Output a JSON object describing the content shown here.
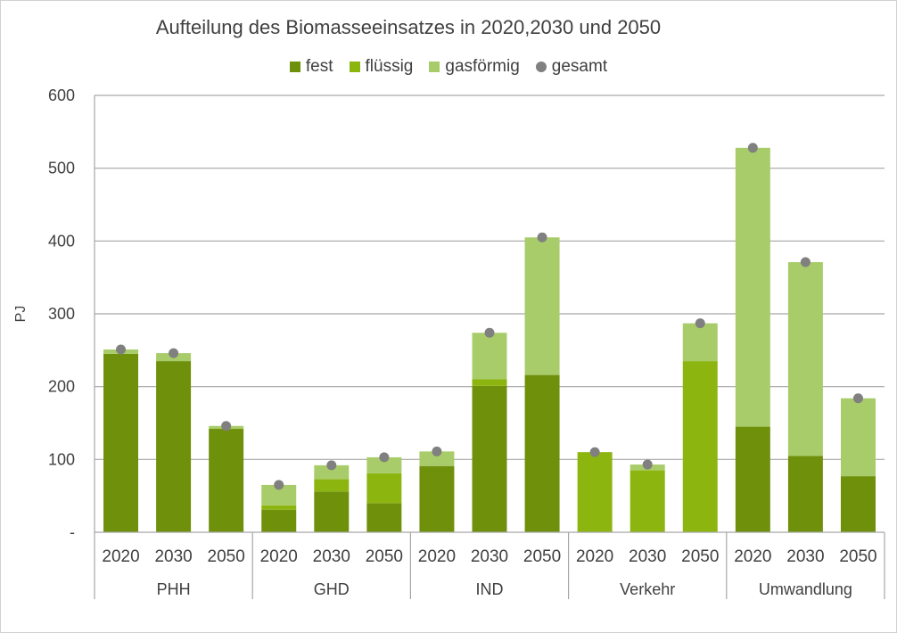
{
  "chart_data": {
    "type": "bar",
    "stacked": true,
    "title": "Aufteilung des Biomasseeinsatzes in 2020,2030 und 2050",
    "ylabel": "PJ",
    "xlabel": "",
    "ylim": [
      0,
      600
    ],
    "yticks": [
      0,
      100,
      200,
      300,
      400,
      500,
      600
    ],
    "ytick_labels": [
      "-",
      "100",
      "200",
      "300",
      "400",
      "500",
      "600"
    ],
    "grid": true,
    "legend_position": "top-center",
    "groups": [
      {
        "label": "PHH",
        "years": [
          "2020",
          "2030",
          "2050"
        ]
      },
      {
        "label": "GHD",
        "years": [
          "2020",
          "2030",
          "2050"
        ]
      },
      {
        "label": "IND",
        "years": [
          "2020",
          "2030",
          "2050"
        ]
      },
      {
        "label": "Verkehr",
        "years": [
          "2020",
          "2030",
          "2050"
        ]
      },
      {
        "label": "Umwandlung",
        "years": [
          "2020",
          "2030",
          "2050"
        ]
      }
    ],
    "series": [
      {
        "name": "fest",
        "color": "#6f900b",
        "values": [
          245,
          235,
          142,
          31,
          56,
          40,
          91,
          201,
          216,
          0,
          0,
          0,
          145,
          105,
          77
        ]
      },
      {
        "name": "flüssig",
        "color": "#8db510",
        "values": [
          0,
          0,
          0,
          6,
          17,
          41,
          0,
          9,
          0,
          110,
          85,
          235,
          0,
          0,
          0
        ]
      },
      {
        "name": "gasförmig",
        "color": "#a9cc6a",
        "values": [
          6,
          11,
          4,
          28,
          19,
          22,
          20,
          64,
          189,
          0,
          8,
          52,
          383,
          266,
          107
        ]
      }
    ],
    "gesamt": {
      "name": "gesamt",
      "color": "#808080",
      "values": [
        251,
        246,
        146,
        65,
        92,
        103,
        111,
        274,
        405,
        110,
        93,
        287,
        528,
        371,
        184
      ]
    }
  }
}
